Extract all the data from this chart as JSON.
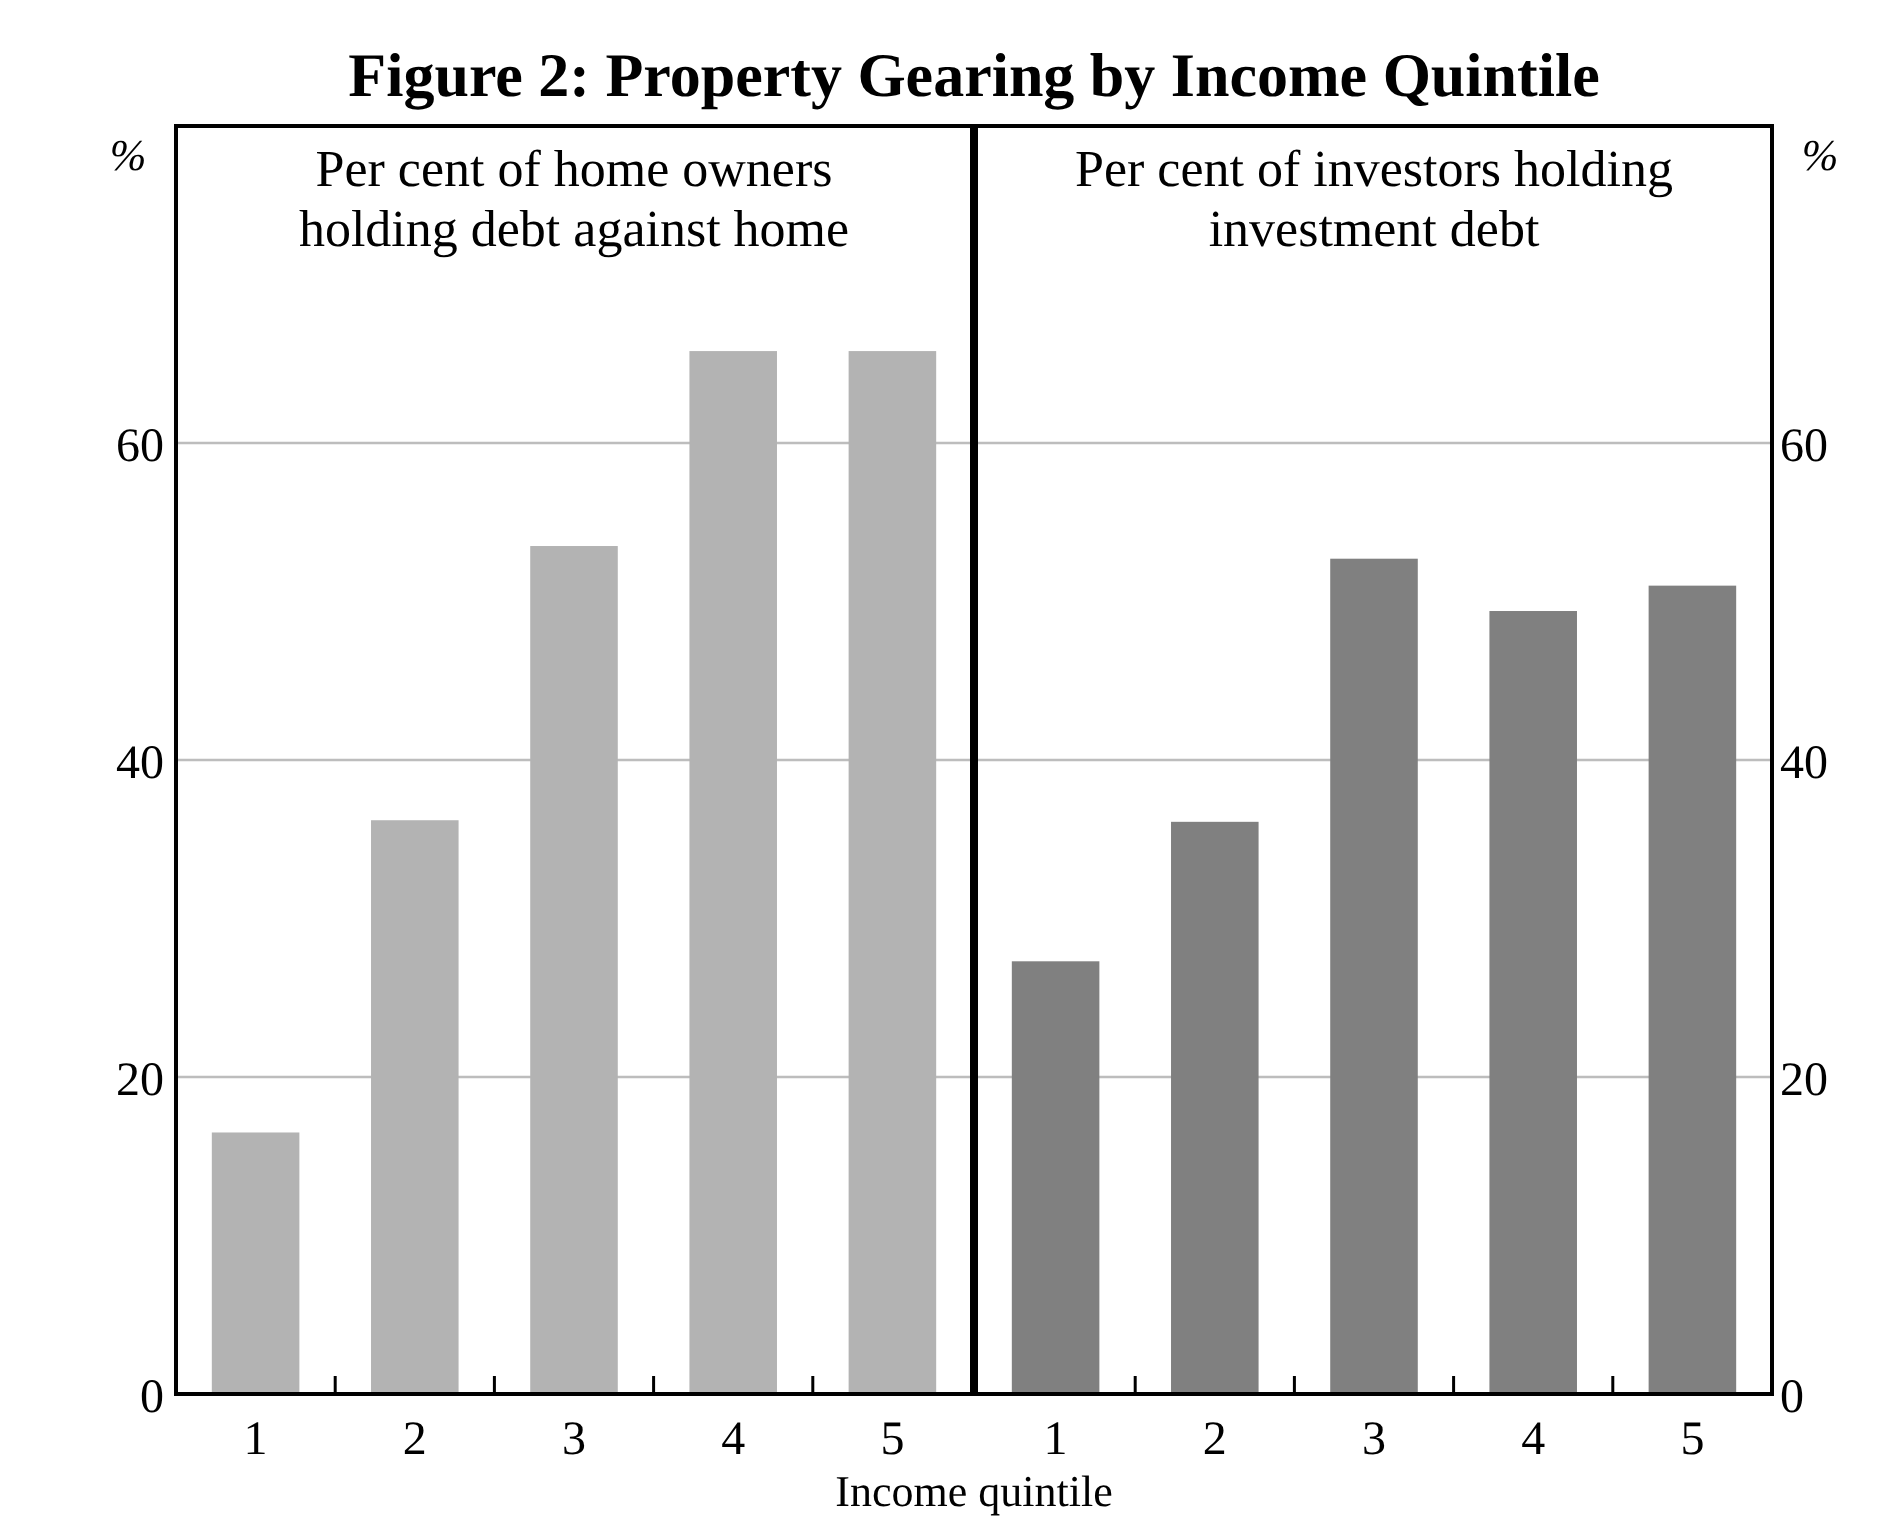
{
  "chart_data": [
    {
      "type": "bar",
      "title": "Figure 2: Property Gearing by Income Quintile",
      "subtitle": "Per cent of home owners\nholding debt against home",
      "xlabel": "Income quintile",
      "ylabel": "%",
      "categories": [
        "1",
        "2",
        "3",
        "4",
        "5"
      ],
      "values": [
        16.5,
        36.2,
        53.5,
        65.8,
        65.8
      ],
      "color": "#b3b3b3",
      "ylim": [
        0,
        80
      ],
      "yticks": [
        0,
        20,
        40,
        60
      ],
      "grid": "y"
    },
    {
      "type": "bar",
      "subtitle": "Per cent of investors holding\ninvestment debt",
      "ylabel": "%",
      "categories": [
        "1",
        "2",
        "3",
        "4",
        "5"
      ],
      "values": [
        27.3,
        36.1,
        52.7,
        49.4,
        51.0
      ],
      "color": "#808080",
      "ylim": [
        0,
        80
      ],
      "yticks": [
        0,
        20,
        40,
        60
      ],
      "grid": "y"
    }
  ]
}
